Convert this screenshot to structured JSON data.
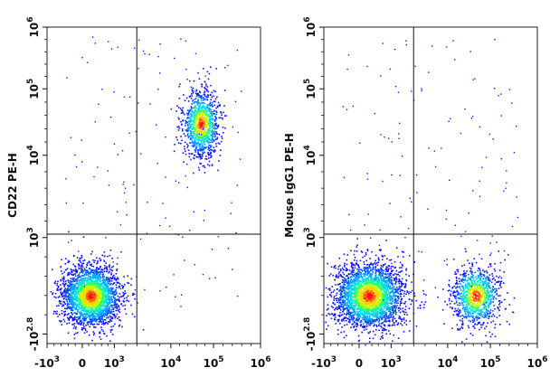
{
  "chart_data": [
    {
      "type": "scatter",
      "xlabel": "",
      "ylabel": "CD22 PE-H",
      "xscale": "biexponential",
      "yscale": "biexponential",
      "x_tick_labels": [
        "-10^3",
        "0",
        "10^3",
        "10^4",
        "10^5",
        "10^6"
      ],
      "y_tick_labels": [
        "-10^2.8",
        "10^3",
        "10^4",
        "10^5",
        "10^6"
      ],
      "quadrant_gate": {
        "x": 2500,
        "y": 1100
      },
      "populations": [
        {
          "name": "",
          "center": [
            250,
            20
          ],
          "density": "high",
          "approx_events": 2500
        },
        {
          "name": "",
          "center": [
            50000,
            30000
          ],
          "density": "high",
          "approx_events": 1100
        }
      ],
      "colormap": [
        "#0000ff",
        "#00c8ff",
        "#00ff80",
        "#ffff00",
        "#ff8000",
        "#ff0000"
      ],
      "grid": false,
      "legend": "none"
    },
    {
      "type": "scatter",
      "xlabel": "",
      "ylabel": "Mouse IgG1 PE-H",
      "xscale": "biexponential",
      "yscale": "biexponential",
      "x_tick_labels": [
        "-10^3",
        "0",
        "10^3",
        "10^4",
        "10^5",
        "10^6"
      ],
      "y_tick_labels": [
        "-10^2.8",
        "10^3",
        "10^4",
        "10^5",
        "10^6"
      ],
      "quadrant_gate": {
        "x": 2500,
        "y": 1100
      },
      "populations": [
        {
          "name": "",
          "center": [
            300,
            20
          ],
          "density": "high",
          "approx_events": 2800
        },
        {
          "name": "",
          "center": [
            45000,
            20
          ],
          "density": "medium",
          "approx_events": 1000
        }
      ],
      "colormap": [
        "#0000ff",
        "#00c8ff",
        "#00ff80",
        "#ffff00",
        "#ff8000",
        "#ff0000"
      ],
      "grid": false,
      "legend": "none"
    }
  ]
}
